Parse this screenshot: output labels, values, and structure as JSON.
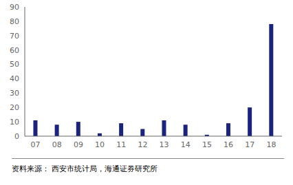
{
  "chart_data": {
    "type": "bar",
    "categories": [
      "07",
      "08",
      "09",
      "10",
      "11",
      "12",
      "13",
      "14",
      "15",
      "16",
      "17",
      "18"
    ],
    "values": [
      11,
      8,
      10,
      2,
      9,
      5,
      11,
      8,
      1,
      9,
      20,
      78
    ],
    "color": "#1a237e",
    "ylim": [
      0,
      90
    ],
    "yticks": [
      0,
      10,
      20,
      30,
      40,
      50,
      60,
      70,
      80,
      90
    ],
    "grid": false,
    "annotations": [
      "资料来源： 西安市统计局，海通证券研究所"
    ]
  }
}
